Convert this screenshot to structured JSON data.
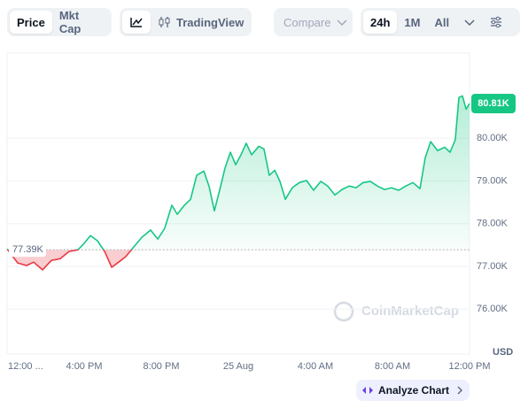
{
  "toolbar": {
    "tabs": [
      "Price",
      "Mkt Cap"
    ],
    "tradingview": "TradingView",
    "compare": "Compare",
    "ranges": [
      "24h",
      "1M",
      "All"
    ],
    "button": "Analyze Chart",
    "watermark": "CoinMarketCap"
  },
  "chart_data": {
    "type": "line",
    "color": "#16c784",
    "color_below": "#ea3943",
    "y_label": "USD",
    "x": [
      0,
      0.55,
      1.01,
      1.38,
      1.84,
      2.3,
      2.76,
      3.22,
      3.68,
      4.0,
      4.32,
      4.69,
      5.06,
      5.43,
      5.79,
      6.16,
      6.53,
      6.99,
      7.45,
      7.82,
      8.18,
      8.55,
      8.83,
      9.2,
      9.52,
      9.84,
      10.21,
      10.48,
      10.76,
      11.03,
      11.31,
      11.59,
      11.86,
      12.14,
      12.41,
      12.69,
      13.06,
      13.33,
      13.61,
      13.89,
      14.16,
      14.44,
      14.8,
      15.17,
      15.54,
      15.91,
      16.28,
      16.64,
      17.01,
      17.38,
      17.75,
      18.11,
      18.48,
      18.85,
      19.22,
      19.59,
      19.95,
      20.32,
      20.69,
      21.06,
      21.43,
      21.7,
      21.98,
      22.34,
      22.71,
      22.99,
      23.26,
      23.45,
      23.63,
      23.82,
      24
    ],
    "values": [
      77410,
      77080,
      77020,
      77100,
      76920,
      77140,
      77180,
      77350,
      77390,
      77540,
      77720,
      77600,
      77350,
      76980,
      77100,
      77230,
      77430,
      77680,
      77850,
      77640,
      77890,
      78430,
      78220,
      78430,
      78570,
      79130,
      79230,
      78880,
      78300,
      78780,
      79300,
      79670,
      79380,
      79610,
      79880,
      79610,
      79810,
      79750,
      79130,
      79250,
      78990,
      78570,
      78840,
      78960,
      79010,
      78780,
      78990,
      78880,
      78670,
      78800,
      78880,
      78840,
      78960,
      78990,
      78880,
      78800,
      78840,
      78780,
      78880,
      78960,
      78820,
      79540,
      79920,
      79710,
      79790,
      79670,
      79960,
      80950,
      80990,
      80680,
      80810
    ],
    "xlim": [
      0,
      24
    ],
    "xticks": [
      {
        "value": 0,
        "label": "12:00 ..."
      },
      {
        "value": 4,
        "label": "4:00 PM"
      },
      {
        "value": 8,
        "label": "8:00 PM"
      },
      {
        "value": 12,
        "label": "25 Aug"
      },
      {
        "value": 16,
        "label": "4:00 AM"
      },
      {
        "value": 20,
        "label": "8:00 AM"
      },
      {
        "value": 24,
        "label": "12:00 PM"
      }
    ],
    "ylim": [
      74950,
      81990
    ],
    "yticks": [
      {
        "value": 76000,
        "label": "76.00K"
      },
      {
        "value": 77000,
        "label": "77.00K"
      },
      {
        "value": 78000,
        "label": "78.00K"
      },
      {
        "value": 79000,
        "label": "79.00K"
      },
      {
        "value": 80000,
        "label": "80.00K"
      }
    ],
    "baseline": {
      "value": 77390,
      "label": "77.39K"
    },
    "last": {
      "value": 80810,
      "label": "80.81K"
    },
    "grid": true
  }
}
